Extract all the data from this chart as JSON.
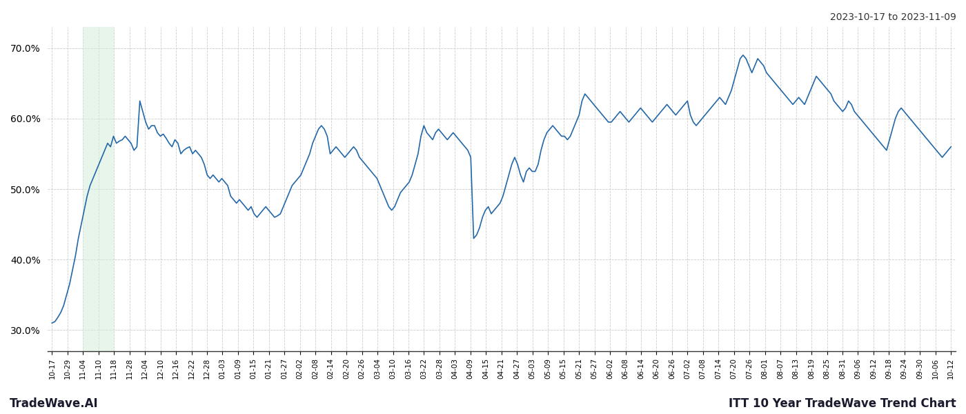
{
  "title_top_right": "2023-10-17 to 2023-11-09",
  "bottom_left": "TradeWave.AI",
  "bottom_right": "ITT 10 Year TradeWave Trend Chart",
  "y_ticks": [
    30.0,
    40.0,
    50.0,
    60.0,
    70.0
  ],
  "ylim": [
    27.0,
    73.0
  ],
  "x_labels": [
    "10-17",
    "10-29",
    "11-04",
    "11-10",
    "11-18",
    "11-28",
    "12-04",
    "12-10",
    "12-16",
    "12-22",
    "12-28",
    "01-03",
    "01-09",
    "01-15",
    "01-21",
    "01-27",
    "02-02",
    "02-08",
    "02-14",
    "02-20",
    "02-26",
    "03-04",
    "03-10",
    "03-16",
    "03-22",
    "03-28",
    "04-03",
    "04-09",
    "04-15",
    "04-21",
    "04-27",
    "05-03",
    "05-09",
    "05-15",
    "05-21",
    "05-27",
    "06-02",
    "06-08",
    "06-14",
    "06-20",
    "06-26",
    "07-02",
    "07-08",
    "07-14",
    "07-20",
    "07-26",
    "08-01",
    "08-07",
    "08-13",
    "08-19",
    "08-25",
    "08-31",
    "09-06",
    "09-12",
    "09-18",
    "09-24",
    "09-30",
    "10-06",
    "10-12"
  ],
  "green_region_start_label": "11-04",
  "green_region_end_label": "11-18",
  "line_color": "#2367a8",
  "green_fill_color": "#d4edda",
  "green_fill_alpha": 0.55,
  "background_color": "#ffffff",
  "grid_color": "#cccccc",
  "y_values": [
    31.0,
    31.2,
    31.8,
    32.5,
    33.5,
    35.0,
    36.5,
    38.5,
    40.5,
    43.0,
    45.0,
    47.0,
    49.0,
    50.5,
    51.5,
    52.5,
    53.5,
    54.5,
    55.5,
    56.5,
    56.0,
    57.5,
    56.5,
    56.8,
    57.0,
    57.5,
    57.0,
    56.5,
    55.5,
    56.0,
    62.5,
    61.0,
    59.5,
    58.5,
    59.0,
    59.0,
    58.0,
    57.5,
    57.8,
    57.2,
    56.5,
    56.0,
    57.0,
    56.5,
    55.0,
    55.5,
    55.8,
    56.0,
    55.0,
    55.5,
    55.0,
    54.5,
    53.5,
    52.0,
    51.5,
    52.0,
    51.5,
    51.0,
    51.5,
    51.0,
    50.5,
    49.0,
    48.5,
    48.0,
    48.5,
    48.0,
    47.5,
    47.0,
    47.5,
    46.5,
    46.0,
    46.5,
    47.0,
    47.5,
    47.0,
    46.5,
    46.0,
    46.2,
    46.5,
    47.5,
    48.5,
    49.5,
    50.5,
    51.0,
    51.5,
    52.0,
    53.0,
    54.0,
    55.0,
    56.5,
    57.5,
    58.5,
    59.0,
    58.5,
    57.5,
    55.0,
    55.5,
    56.0,
    55.5,
    55.0,
    54.5,
    55.0,
    55.5,
    56.0,
    55.5,
    54.5,
    54.0,
    53.5,
    53.0,
    52.5,
    52.0,
    51.5,
    50.5,
    49.5,
    48.5,
    47.5,
    47.0,
    47.5,
    48.5,
    49.5,
    50.0,
    50.5,
    51.0,
    52.0,
    53.5,
    55.0,
    57.5,
    59.0,
    58.0,
    57.5,
    57.0,
    58.0,
    58.5,
    58.0,
    57.5,
    57.0,
    57.5,
    58.0,
    57.5,
    57.0,
    56.5,
    56.0,
    55.5,
    54.5,
    43.0,
    43.5,
    44.5,
    46.0,
    47.0,
    47.5,
    46.5,
    47.0,
    47.5,
    48.0,
    49.0,
    50.5,
    52.0,
    53.5,
    54.5,
    53.5,
    52.0,
    51.0,
    52.5,
    53.0,
    52.5,
    52.5,
    53.5,
    55.5,
    57.0,
    58.0,
    58.5,
    59.0,
    58.5,
    58.0,
    57.5,
    57.5,
    57.0,
    57.5,
    58.5,
    59.5,
    60.5,
    62.5,
    63.5,
    63.0,
    62.5,
    62.0,
    61.5,
    61.0,
    60.5,
    60.0,
    59.5,
    59.5,
    60.0,
    60.5,
    61.0,
    60.5,
    60.0,
    59.5,
    60.0,
    60.5,
    61.0,
    61.5,
    61.0,
    60.5,
    60.0,
    59.5,
    60.0,
    60.5,
    61.0,
    61.5,
    62.0,
    61.5,
    61.0,
    60.5,
    61.0,
    61.5,
    62.0,
    62.5,
    60.5,
    59.5,
    59.0,
    59.5,
    60.0,
    60.5,
    61.0,
    61.5,
    62.0,
    62.5,
    63.0,
    62.5,
    62.0,
    63.0,
    64.0,
    65.5,
    67.0,
    68.5,
    69.0,
    68.5,
    67.5,
    66.5,
    67.5,
    68.5,
    68.0,
    67.5,
    66.5,
    66.0,
    65.5,
    65.0,
    64.5,
    64.0,
    63.5,
    63.0,
    62.5,
    62.0,
    62.5,
    63.0,
    62.5,
    62.0,
    63.0,
    64.0,
    65.0,
    66.0,
    65.5,
    65.0,
    64.5,
    64.0,
    63.5,
    62.5,
    62.0,
    61.5,
    61.0,
    61.5,
    62.5,
    62.0,
    61.0,
    60.5,
    60.0,
    59.5,
    59.0,
    58.5,
    58.0,
    57.5,
    57.0,
    56.5,
    56.0,
    55.5,
    57.0,
    58.5,
    60.0,
    61.0,
    61.5,
    61.0,
    60.5,
    60.0,
    59.5,
    59.0,
    58.5,
    58.0,
    57.5,
    57.0,
    56.5,
    56.0,
    55.5,
    55.0,
    54.5,
    55.0,
    55.5,
    56.0
  ]
}
